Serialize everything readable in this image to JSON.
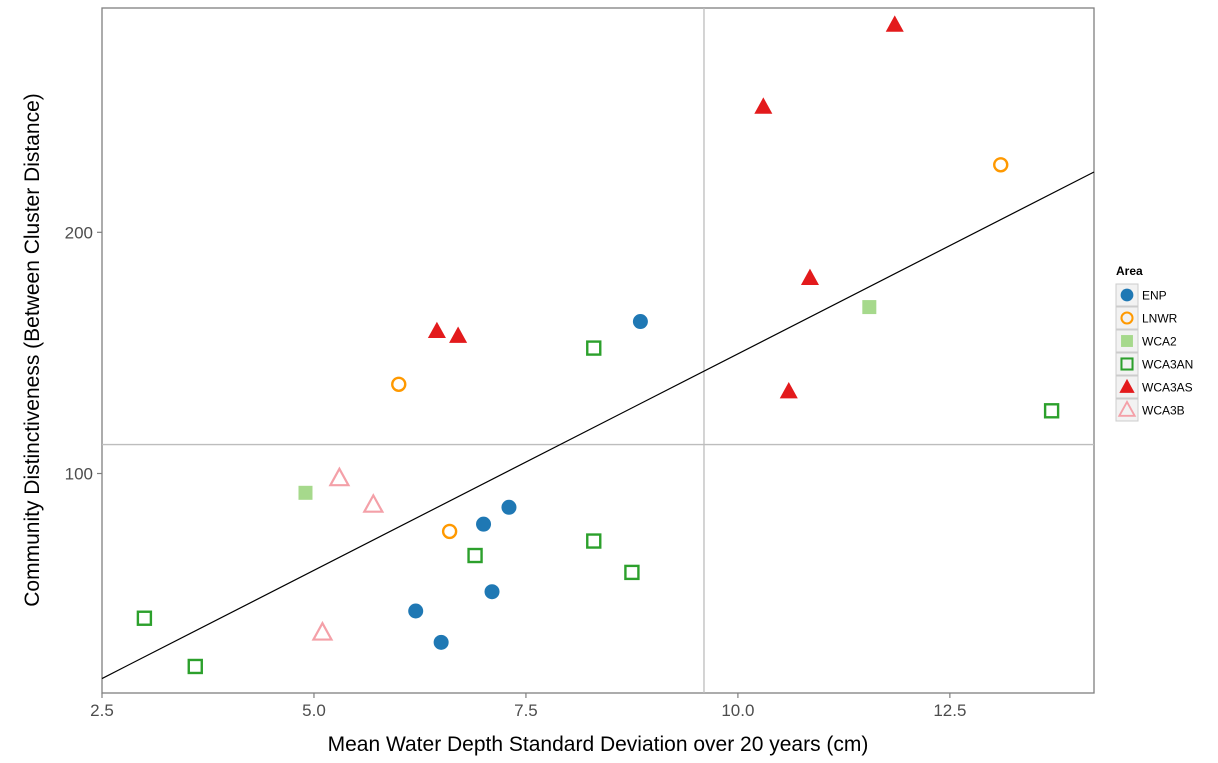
{
  "chart_data": {
    "type": "scatter",
    "title": "",
    "xlabel": "Mean Water Depth Standard Deviation over 20 years (cm)",
    "ylabel": "Community Distinctiveness (Between Cluster Distance)",
    "xlim": [
      2.5,
      14.2
    ],
    "ylim": [
      9,
      293
    ],
    "x_ticks": [
      2.5,
      5.0,
      7.5,
      10.0,
      12.5
    ],
    "x_tick_labels": [
      "2.5",
      "5.0",
      "7.5",
      "10.0",
      "12.5"
    ],
    "y_ticks": [
      100,
      200
    ],
    "y_tick_labels": [
      "100",
      "200"
    ],
    "reference_lines": {
      "vertical_x": 9.6,
      "horizontal_y": 112
    },
    "fit_line": {
      "x": [
        2.5,
        14.2
      ],
      "y": [
        15,
        225
      ]
    },
    "grid": false,
    "legend": {
      "title": "Area",
      "position": "right",
      "entries": [
        {
          "name": "ENP",
          "color": "#1f78b4",
          "shape": "filled-circle"
        },
        {
          "name": "LNWR",
          "color": "#ff9900",
          "shape": "open-circle"
        },
        {
          "name": "WCA2",
          "color": "#a6d98c",
          "shape": "filled-square"
        },
        {
          "name": "WCA3AN",
          "color": "#2ca02c",
          "shape": "open-square"
        },
        {
          "name": "WCA3AS",
          "color": "#e31a1c",
          "shape": "filled-triangle"
        },
        {
          "name": "WCA3B",
          "color": "#f4a0a8",
          "shape": "open-triangle"
        }
      ]
    },
    "series": [
      {
        "name": "ENP",
        "points": [
          [
            6.2,
            43
          ],
          [
            6.5,
            30
          ],
          [
            7.0,
            79
          ],
          [
            7.1,
            51
          ],
          [
            7.3,
            86
          ],
          [
            8.85,
            163
          ]
        ]
      },
      {
        "name": "LNWR",
        "points": [
          [
            6.0,
            137
          ],
          [
            6.6,
            76
          ],
          [
            13.1,
            228
          ]
        ]
      },
      {
        "name": "WCA2",
        "points": [
          [
            4.9,
            92
          ],
          [
            11.55,
            169
          ]
        ]
      },
      {
        "name": "WCA3AN",
        "points": [
          [
            3.0,
            40
          ],
          [
            3.6,
            20
          ],
          [
            6.9,
            66
          ],
          [
            8.3,
            152
          ],
          [
            8.3,
            72
          ],
          [
            8.75,
            59
          ],
          [
            13.7,
            126
          ]
        ]
      },
      {
        "name": "WCA3AS",
        "points": [
          [
            6.45,
            159
          ],
          [
            6.7,
            157
          ],
          [
            10.3,
            252
          ],
          [
            10.6,
            134
          ],
          [
            10.85,
            181
          ],
          [
            11.85,
            286
          ]
        ]
      },
      {
        "name": "WCA3B",
        "points": [
          [
            5.1,
            34
          ],
          [
            5.3,
            98
          ],
          [
            5.7,
            87
          ]
        ]
      }
    ]
  }
}
